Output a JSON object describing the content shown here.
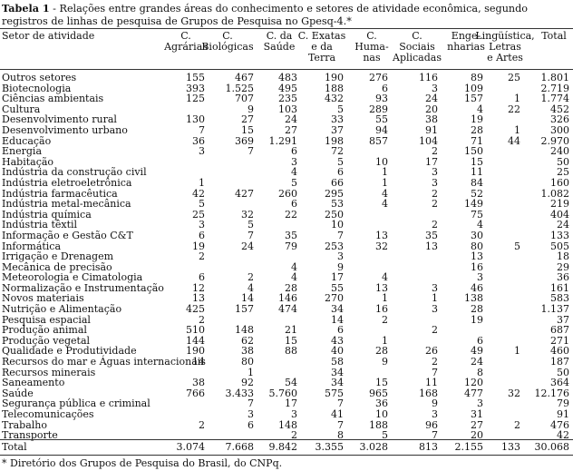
{
  "caption": {
    "label": "Tabela 1",
    "text": " - Relações entre grandes áreas do conhecimento e setores de atividade econômica, segundo registros de linhas de pesquisa de Grupos de Pesquisa no Gpesq-4.*"
  },
  "headers": {
    "setor": "Setor de atividade",
    "cols": [
      [
        "C.",
        "Agrárias"
      ],
      [
        "C.",
        "Biológicas"
      ],
      [
        "C. da",
        "Saúde"
      ],
      [
        "C. Exatas",
        "e da",
        "Terra"
      ],
      [
        "C.",
        "Huma-",
        "nas"
      ],
      [
        "C.",
        "Sociais",
        "Aplicadas"
      ],
      [
        "Enge-",
        "nharias"
      ],
      [
        "Lingüística,",
        "Letras",
        "e Artes"
      ],
      [
        "Total"
      ]
    ]
  },
  "rows": [
    [
      "Outros setores",
      "155",
      "467",
      "483",
      "190",
      "276",
      "116",
      "89",
      "25",
      "1.801"
    ],
    [
      "Biotecnologia",
      "393",
      "1.525",
      "495",
      "188",
      "6",
      "3",
      "109",
      "",
      "2.719"
    ],
    [
      "Ciências ambientais",
      "125",
      "707",
      "235",
      "432",
      "93",
      "24",
      "157",
      "1",
      "1.774"
    ],
    [
      "Cultura",
      "",
      "9",
      "103",
      "5",
      "289",
      "20",
      "4",
      "22",
      "452"
    ],
    [
      "Desenvolvimento rural",
      "130",
      "27",
      "24",
      "33",
      "55",
      "38",
      "19",
      "",
      "326"
    ],
    [
      "Desenvolvimento urbano",
      "7",
      "15",
      "27",
      "37",
      "94",
      "91",
      "28",
      "1",
      "300"
    ],
    [
      "Educação",
      "36",
      "369",
      "1.291",
      "198",
      "857",
      "104",
      "71",
      "44",
      "2.970"
    ],
    [
      "Energia",
      "3",
      "7",
      "6",
      "72",
      "",
      "2",
      "150",
      "",
      "240"
    ],
    [
      "Habitação",
      "",
      "",
      "3",
      "5",
      "10",
      "17",
      "15",
      "",
      "50"
    ],
    [
      "Indústria da construção civil",
      "",
      "",
      "4",
      "6",
      "1",
      "3",
      "11",
      "",
      "25"
    ],
    [
      "Indústria eletroeletrônica",
      "1",
      "",
      "5",
      "66",
      "1",
      "3",
      "84",
      "",
      "160"
    ],
    [
      "Indústria farmacêutica",
      "42",
      "427",
      "260",
      "295",
      "4",
      "2",
      "52",
      "",
      "1.082"
    ],
    [
      "Indústria metal-mecânica",
      "5",
      "",
      "6",
      "53",
      "4",
      "2",
      "149",
      "",
      "219"
    ],
    [
      "Indústria química",
      "25",
      "32",
      "22",
      "250",
      "",
      "",
      "75",
      "",
      "404"
    ],
    [
      "Indústria têxtil",
      "3",
      "5",
      "",
      "10",
      "",
      "2",
      "4",
      "",
      "24"
    ],
    [
      "Informação e Gestão C&T",
      "6",
      "7",
      "35",
      "7",
      "13",
      "35",
      "30",
      "",
      "133"
    ],
    [
      "Informática",
      "19",
      "24",
      "79",
      "253",
      "32",
      "13",
      "80",
      "5",
      "505"
    ],
    [
      "Irrigação e Drenagem",
      "2",
      "",
      "",
      "3",
      "",
      "",
      "13",
      "",
      "18"
    ],
    [
      "Mecânica de precisão",
      "",
      "",
      "4",
      "9",
      "",
      "",
      "16",
      "",
      "29"
    ],
    [
      "Meteorologia e Cimatologia",
      "6",
      "2",
      "4",
      "17",
      "4",
      "",
      "3",
      "",
      "36"
    ],
    [
      "Normalização e Instrumentação",
      "12",
      "4",
      "28",
      "55",
      "13",
      "3",
      "46",
      "",
      "161"
    ],
    [
      "Novos materiais",
      "13",
      "14",
      "146",
      "270",
      "1",
      "1",
      "138",
      "",
      "583"
    ],
    [
      "Nutrição e Alimentação",
      "425",
      "157",
      "474",
      "34",
      "16",
      "3",
      "28",
      "",
      "1.137"
    ],
    [
      "Pesquisa espacial",
      "2",
      "",
      "",
      "14",
      "2",
      "",
      "19",
      "",
      "37"
    ],
    [
      "Produção animal",
      "510",
      "148",
      "21",
      "6",
      "",
      "2",
      "",
      "",
      "687"
    ],
    [
      "Produção vegetal",
      "144",
      "62",
      "15",
      "43",
      "1",
      "",
      "6",
      "",
      "271"
    ],
    [
      "Qualidade e Produtividade",
      "190",
      "38",
      "88",
      "40",
      "28",
      "26",
      "49",
      "1",
      "460"
    ],
    [
      "Recursos do mar e Águas internacionais",
      "14",
      "80",
      "",
      "58",
      "9",
      "2",
      "24",
      "",
      "187"
    ],
    [
      "Recursos minerais",
      "",
      "1",
      "",
      "34",
      "",
      "7",
      "8",
      "",
      "50"
    ],
    [
      "Saneamento",
      "38",
      "92",
      "54",
      "34",
      "15",
      "11",
      "120",
      "",
      "364"
    ],
    [
      "Saúde",
      "766",
      "3.433",
      "5.760",
      "575",
      "965",
      "168",
      "477",
      "32",
      "12.176"
    ],
    [
      "Segurança pública e criminal",
      "",
      "7",
      "17",
      "7",
      "36",
      "9",
      "3",
      "",
      "79"
    ],
    [
      "Telecomunicações",
      "",
      "3",
      "3",
      "41",
      "10",
      "3",
      "31",
      "",
      "91"
    ],
    [
      "Trabalho",
      "2",
      "6",
      "148",
      "7",
      "188",
      "96",
      "27",
      "2",
      "476"
    ],
    [
      "Transporte",
      "",
      "",
      "2",
      "8",
      "5",
      "7",
      "20",
      "",
      "42"
    ]
  ],
  "total": [
    "Total",
    "3.074",
    "7.668",
    "9.842",
    "3.355",
    "3.028",
    "813",
    "2.155",
    "133",
    "30.068"
  ],
  "footnote": "* Diretório dos Grupos de Pesquisa do Brasil, do CNPq."
}
